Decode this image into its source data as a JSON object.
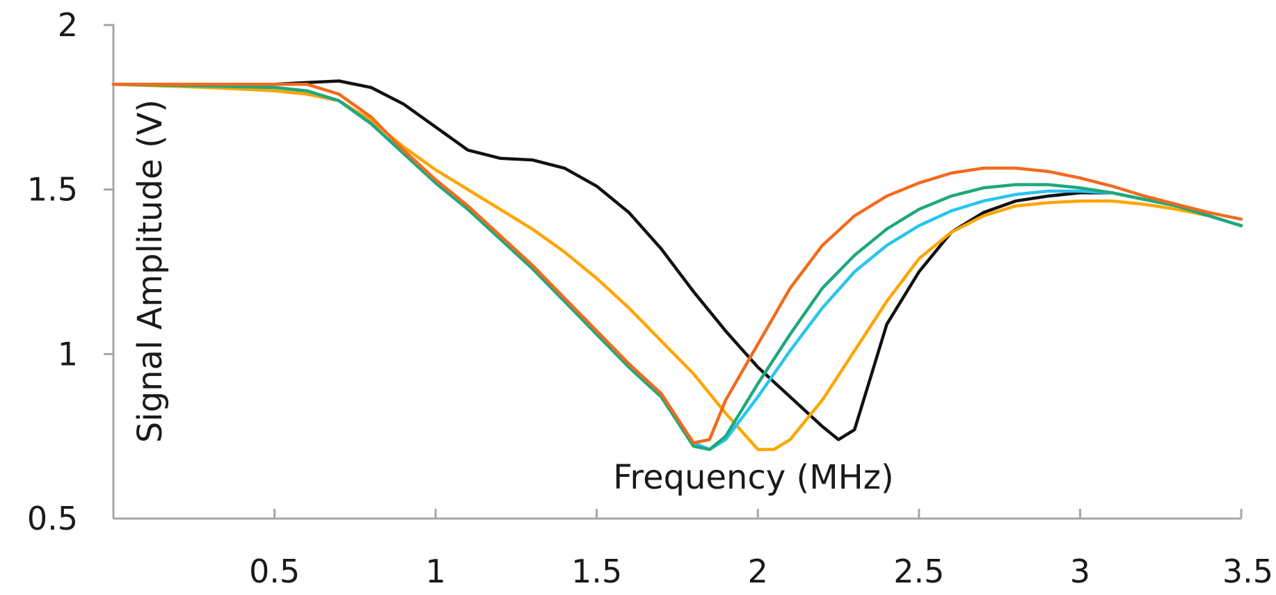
{
  "chart_data": {
    "type": "line",
    "title": "",
    "xlabel": "Frequency (MHz)",
    "ylabel": "Signal Amplitude (V)",
    "xlim": [
      0,
      3.5
    ],
    "ylim": [
      0.5,
      2
    ],
    "x_ticks": [
      "0.5",
      "1",
      "1.5",
      "2",
      "2.5",
      "3",
      "3.5"
    ],
    "y_ticks": [
      "0.5",
      "1",
      "1.5",
      "2"
    ],
    "grid": false,
    "legend": "none",
    "series": [
      {
        "color": "#111111",
        "points": [
          [
            0,
            1.82
          ],
          [
            0.3,
            1.82
          ],
          [
            0.5,
            1.82
          ],
          [
            0.6,
            1.825
          ],
          [
            0.7,
            1.83
          ],
          [
            0.8,
            1.81
          ],
          [
            0.9,
            1.76
          ],
          [
            1.0,
            1.69
          ],
          [
            1.1,
            1.62
          ],
          [
            1.2,
            1.595
          ],
          [
            1.3,
            1.59
          ],
          [
            1.4,
            1.565
          ],
          [
            1.5,
            1.51
          ],
          [
            1.6,
            1.43
          ],
          [
            1.7,
            1.32
          ],
          [
            1.8,
            1.19
          ],
          [
            1.9,
            1.07
          ],
          [
            2.0,
            0.96
          ],
          [
            2.1,
            0.87
          ],
          [
            2.2,
            0.78
          ],
          [
            2.25,
            0.74
          ],
          [
            2.3,
            0.77
          ],
          [
            2.35,
            0.93
          ],
          [
            2.4,
            1.09
          ],
          [
            2.5,
            1.25
          ],
          [
            2.6,
            1.37
          ],
          [
            2.7,
            1.43
          ],
          [
            2.8,
            1.465
          ],
          [
            2.9,
            1.48
          ],
          [
            3.0,
            1.49
          ],
          [
            3.1,
            1.49
          ],
          [
            3.2,
            1.47
          ],
          [
            3.3,
            1.45
          ],
          [
            3.4,
            1.42
          ],
          [
            3.5,
            1.39
          ]
        ]
      },
      {
        "color": "#ffa500",
        "points": [
          [
            0,
            1.82
          ],
          [
            0.3,
            1.81
          ],
          [
            0.5,
            1.8
          ],
          [
            0.6,
            1.79
          ],
          [
            0.7,
            1.77
          ],
          [
            0.8,
            1.71
          ],
          [
            0.9,
            1.63
          ],
          [
            1.0,
            1.56
          ],
          [
            1.1,
            1.5
          ],
          [
            1.2,
            1.44
          ],
          [
            1.3,
            1.38
          ],
          [
            1.4,
            1.31
          ],
          [
            1.5,
            1.23
          ],
          [
            1.6,
            1.14
          ],
          [
            1.7,
            1.04
          ],
          [
            1.8,
            0.94
          ],
          [
            1.9,
            0.82
          ],
          [
            2.0,
            0.71
          ],
          [
            2.05,
            0.71
          ],
          [
            2.1,
            0.74
          ],
          [
            2.2,
            0.86
          ],
          [
            2.3,
            1.01
          ],
          [
            2.4,
            1.16
          ],
          [
            2.5,
            1.29
          ],
          [
            2.6,
            1.37
          ],
          [
            2.7,
            1.42
          ],
          [
            2.8,
            1.45
          ],
          [
            2.9,
            1.46
          ],
          [
            3.0,
            1.465
          ],
          [
            3.1,
            1.465
          ],
          [
            3.2,
            1.455
          ],
          [
            3.3,
            1.44
          ],
          [
            3.4,
            1.42
          ],
          [
            3.5,
            1.39
          ]
        ]
      },
      {
        "color": "#29c4f0",
        "points": [
          [
            0,
            1.82
          ],
          [
            0.3,
            1.815
          ],
          [
            0.5,
            1.81
          ],
          [
            0.6,
            1.8
          ],
          [
            0.7,
            1.77
          ],
          [
            0.8,
            1.7
          ],
          [
            0.9,
            1.61
          ],
          [
            1.0,
            1.52
          ],
          [
            1.1,
            1.44
          ],
          [
            1.2,
            1.35
          ],
          [
            1.3,
            1.26
          ],
          [
            1.4,
            1.16
          ],
          [
            1.5,
            1.06
          ],
          [
            1.6,
            0.96
          ],
          [
            1.7,
            0.87
          ],
          [
            1.8,
            0.73
          ],
          [
            1.85,
            0.71
          ],
          [
            1.9,
            0.74
          ],
          [
            2.0,
            0.87
          ],
          [
            2.1,
            1.01
          ],
          [
            2.2,
            1.14
          ],
          [
            2.3,
            1.25
          ],
          [
            2.4,
            1.33
          ],
          [
            2.5,
            1.39
          ],
          [
            2.6,
            1.435
          ],
          [
            2.7,
            1.465
          ],
          [
            2.8,
            1.485
          ],
          [
            2.9,
            1.495
          ],
          [
            3.0,
            1.495
          ],
          [
            3.1,
            1.49
          ],
          [
            3.2,
            1.47
          ],
          [
            3.3,
            1.45
          ],
          [
            3.4,
            1.42
          ],
          [
            3.5,
            1.39
          ]
        ]
      },
      {
        "color": "#1fa87c",
        "points": [
          [
            0,
            1.82
          ],
          [
            0.3,
            1.815
          ],
          [
            0.5,
            1.81
          ],
          [
            0.6,
            1.8
          ],
          [
            0.7,
            1.77
          ],
          [
            0.8,
            1.7
          ],
          [
            0.9,
            1.61
          ],
          [
            1.0,
            1.52
          ],
          [
            1.1,
            1.44
          ],
          [
            1.2,
            1.35
          ],
          [
            1.3,
            1.26
          ],
          [
            1.4,
            1.16
          ],
          [
            1.5,
            1.06
          ],
          [
            1.6,
            0.96
          ],
          [
            1.7,
            0.87
          ],
          [
            1.8,
            0.72
          ],
          [
            1.85,
            0.71
          ],
          [
            1.9,
            0.75
          ],
          [
            2.0,
            0.91
          ],
          [
            2.1,
            1.06
          ],
          [
            2.2,
            1.2
          ],
          [
            2.3,
            1.3
          ],
          [
            2.4,
            1.38
          ],
          [
            2.5,
            1.44
          ],
          [
            2.6,
            1.48
          ],
          [
            2.7,
            1.505
          ],
          [
            2.8,
            1.515
          ],
          [
            2.9,
            1.515
          ],
          [
            3.0,
            1.505
          ],
          [
            3.1,
            1.49
          ],
          [
            3.2,
            1.47
          ],
          [
            3.3,
            1.45
          ],
          [
            3.4,
            1.42
          ],
          [
            3.5,
            1.39
          ]
        ]
      },
      {
        "color": "#f26b1d",
        "points": [
          [
            0,
            1.82
          ],
          [
            0.3,
            1.82
          ],
          [
            0.5,
            1.82
          ],
          [
            0.6,
            1.82
          ],
          [
            0.7,
            1.79
          ],
          [
            0.8,
            1.72
          ],
          [
            0.9,
            1.62
          ],
          [
            1.0,
            1.53
          ],
          [
            1.1,
            1.45
          ],
          [
            1.2,
            1.36
          ],
          [
            1.3,
            1.27
          ],
          [
            1.4,
            1.17
          ],
          [
            1.5,
            1.07
          ],
          [
            1.6,
            0.97
          ],
          [
            1.7,
            0.88
          ],
          [
            1.8,
            0.73
          ],
          [
            1.85,
            0.74
          ],
          [
            1.9,
            0.86
          ],
          [
            2.0,
            1.03
          ],
          [
            2.1,
            1.2
          ],
          [
            2.2,
            1.33
          ],
          [
            2.3,
            1.42
          ],
          [
            2.4,
            1.48
          ],
          [
            2.5,
            1.52
          ],
          [
            2.6,
            1.55
          ],
          [
            2.7,
            1.565
          ],
          [
            2.8,
            1.565
          ],
          [
            2.9,
            1.555
          ],
          [
            3.0,
            1.535
          ],
          [
            3.1,
            1.51
          ],
          [
            3.2,
            1.48
          ],
          [
            3.3,
            1.455
          ],
          [
            3.4,
            1.43
          ],
          [
            3.5,
            1.41
          ]
        ]
      }
    ]
  }
}
